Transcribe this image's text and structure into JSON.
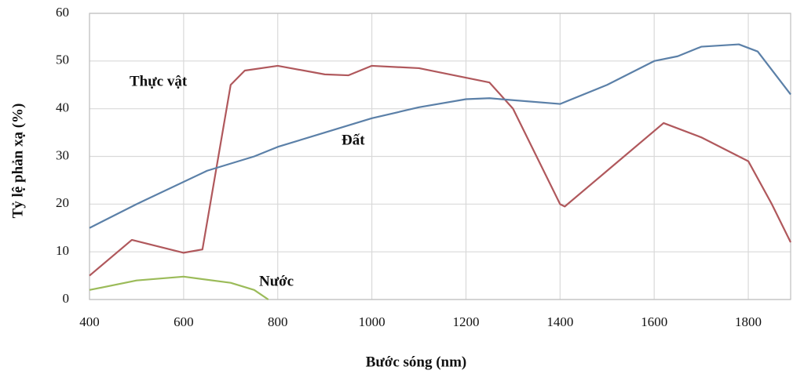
{
  "chart_data": {
    "type": "line",
    "xlabel": "Bước sóng (nm)",
    "ylabel": "Tỷ lệ phản xạ (%)",
    "xlim": [
      400,
      1890
    ],
    "xticks": [
      400,
      600,
      800,
      1000,
      1200,
      1400,
      1600,
      1800
    ],
    "ylim": [
      0,
      60
    ],
    "yticks": [
      0,
      10,
      20,
      30,
      40,
      50,
      60
    ],
    "grid": true,
    "series": [
      {
        "name": "Thực vật",
        "color": "#b0585c",
        "x": [
          400,
          490,
          600,
          640,
          700,
          730,
          800,
          900,
          950,
          1000,
          1100,
          1250,
          1300,
          1400,
          1410,
          1500,
          1620,
          1700,
          1800,
          1850,
          1890
        ],
        "values": [
          5,
          12.5,
          9.8,
          10.5,
          45,
          48,
          49,
          47.2,
          47,
          49,
          48.5,
          45.5,
          40,
          20,
          19.5,
          27,
          37,
          34,
          29,
          20,
          12
        ]
      },
      {
        "name": "Đất",
        "color": "#5b80a8",
        "x": [
          400,
          500,
          650,
          750,
          800,
          900,
          1000,
          1100,
          1200,
          1250,
          1300,
          1400,
          1500,
          1600,
          1650,
          1700,
          1780,
          1820,
          1890
        ],
        "values": [
          15,
          20,
          27,
          30,
          32,
          35,
          38,
          40.3,
          42,
          42.2,
          41.8,
          41,
          45,
          50,
          51,
          53,
          53.5,
          52,
          43
        ]
      },
      {
        "name": "Nước",
        "color": "#9bbb59",
        "x": [
          400,
          500,
          600,
          700,
          750,
          780
        ],
        "values": [
          2,
          4,
          4.8,
          3.5,
          2,
          0
        ]
      }
    ]
  }
}
